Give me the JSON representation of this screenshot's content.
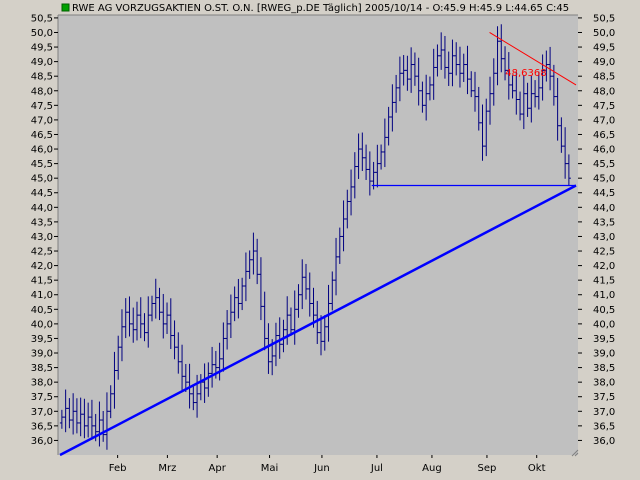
{
  "chart_data": {
    "type": "bar",
    "subtype": "ohlc",
    "title": "RWE AG VORZUGSAKTIEN O.ST. O.N. [RWEG_p.DE  Täglich] 2005/10/14 - O:45.9 H:45.9 L:44.65 C:45",
    "symbol_color": "#00a000",
    "bar_color": "#000080",
    "background_color": "#c0c0c0",
    "panel_color": "#d4d0c8",
    "ylim": [
      35.5,
      50.6
    ],
    "y_ticks": [
      "36,0",
      "36,5",
      "37,0",
      "37,5",
      "38,0",
      "38,5",
      "39,0",
      "39,5",
      "40,0",
      "40,5",
      "41,0",
      "41,5",
      "42,0",
      "42,5",
      "43,0",
      "43,5",
      "44,0",
      "44,5",
      "45,0",
      "45,5",
      "46,0",
      "46,5",
      "47,0",
      "47,5",
      "48,0",
      "48,5",
      "49,0",
      "49,5",
      "50,0",
      "50,5"
    ],
    "y_tick_values": [
      36.0,
      36.5,
      37.0,
      37.5,
      38.0,
      38.5,
      39.0,
      39.5,
      40.0,
      40.5,
      41.0,
      41.5,
      42.0,
      42.5,
      43.0,
      43.5,
      44.0,
      44.5,
      45.0,
      45.5,
      46.0,
      46.5,
      47.0,
      47.5,
      48.0,
      48.5,
      49.0,
      49.5,
      50.0,
      50.5
    ],
    "x_ticks": [
      "Feb",
      "Mrz",
      "Apr",
      "Mai",
      "Jun",
      "Jul",
      "Aug",
      "Sep",
      "Okt"
    ],
    "x_tick_days": [
      22,
      41,
      60,
      80,
      100,
      121,
      142,
      163,
      182
    ],
    "x_range_days": [
      0,
      197
    ],
    "daily_closes": [
      36.8,
      37.1,
      36.7,
      37.0,
      36.6,
      36.9,
      36.5,
      36.8,
      36.5,
      36.3,
      36.7,
      36.2,
      37.0,
      37.6,
      38.4,
      39.2,
      39.9,
      40.4,
      40.0,
      39.8,
      40.3,
      40.0,
      39.7,
      40.3,
      40.7,
      40.9,
      40.4,
      40.0,
      40.3,
      39.6,
      39.2,
      38.7,
      38.2,
      38.0,
      37.6,
      37.3,
      37.6,
      38.0,
      37.8,
      38.3,
      38.6,
      38.5,
      38.8,
      39.5,
      40.0,
      40.4,
      40.9,
      40.7,
      41.3,
      41.8,
      42.2,
      42.5,
      41.7,
      40.6,
      39.5,
      38.7,
      38.9,
      39.6,
      39.3,
      39.8,
      40.3,
      39.8,
      40.5,
      41.0,
      41.6,
      41.2,
      40.7,
      40.3,
      39.7,
      39.4,
      39.9,
      40.7,
      41.5,
      42.3,
      43.0,
      43.6,
      44.2,
      44.7,
      45.4,
      46.0,
      45.7,
      45.3,
      44.9,
      45.2,
      45.5,
      45.9,
      46.4,
      47.1,
      47.6,
      48.1,
      48.6,
      48.7,
      48.4,
      48.9,
      48.5,
      48.0,
      47.5,
      47.9,
      48.2,
      48.8,
      49.2,
      49.4,
      48.8,
      48.6,
      49.2,
      48.9,
      48.6,
      48.9,
      48.4,
      48.0,
      47.8,
      46.9,
      46.1,
      47.3,
      47.9,
      48.6,
      49.7,
      49.1,
      48.7,
      48.2,
      48.0,
      47.7,
      47.2,
      47.9,
      47.4,
      47.9,
      47.8,
      48.1,
      48.7,
      48.9,
      48.5,
      47.8,
      46.8,
      46.1,
      45.5,
      45.0
    ],
    "support_line": {
      "color": "#0000ff",
      "from": {
        "day": 0,
        "value": 35.5
      },
      "to": {
        "day": 197,
        "value": 44.75
      }
    },
    "horizontal_line": {
      "color": "#0000ff",
      "from_day": 119,
      "to_day": 197,
      "value": 44.75
    },
    "resistance_line": {
      "color": "#ff0000",
      "from": {
        "day": 164,
        "value": 50.0
      },
      "to": {
        "day": 197,
        "value": 48.2
      }
    },
    "level_label": {
      "text": "48,6368",
      "value": 48.6368,
      "color": "#ff0000"
    }
  }
}
